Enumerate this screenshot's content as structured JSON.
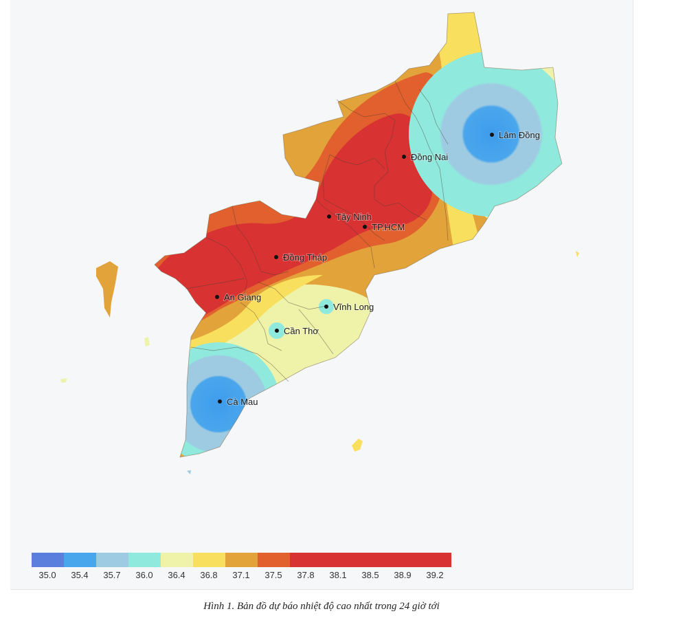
{
  "map": {
    "cities": [
      {
        "name": "Lâm Đồng"
      },
      {
        "name": "Đồng Nai"
      },
      {
        "name": "Tây Ninh"
      },
      {
        "name": "TP.HCM"
      },
      {
        "name": "Đồng Tháp"
      },
      {
        "name": "An Giang"
      },
      {
        "name": "Vĩnh Long"
      },
      {
        "name": "Cần Thơ"
      },
      {
        "name": "Cà Mau"
      }
    ]
  },
  "legend": {
    "ticks": [
      "35.0",
      "35.4",
      "35.7",
      "36.0",
      "36.4",
      "36.8",
      "37.1",
      "37.5",
      "37.8",
      "38.1",
      "38.5",
      "38.9",
      "39.2"
    ],
    "colors": [
      "#5a7fdc",
      "#4aa6ec",
      "#9ecbe2",
      "#8fe9dd",
      "#eef3a9",
      "#f9df5e",
      "#e2a33a",
      "#e2602e",
      "#d93232",
      "#d93232",
      "#d93232",
      "#d93232",
      "#d93232"
    ]
  },
  "caption": "Hình 1. Bản đồ dự báo nhiệt độ cao nhất trong 24 giờ tới"
}
